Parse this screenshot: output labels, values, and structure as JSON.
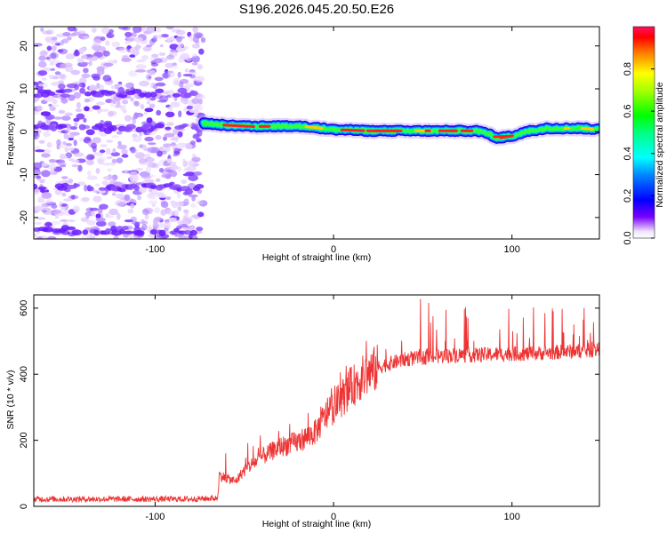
{
  "title": "S196.2026.045.20.50.E26",
  "chart_data": [
    {
      "type": "heatmap",
      "title": "S196.2026.045.20.50.E26",
      "xlabel": "Height of straight line (km)",
      "ylabel": "Frequency (Hz)",
      "xlim": [
        -168,
        149
      ],
      "ylim": [
        -25,
        24.5
      ],
      "xticks": [
        -100,
        0,
        100
      ],
      "xtick_labels": [
        "-100",
        "0",
        "100"
      ],
      "yticks": [
        -20,
        -10,
        0,
        10,
        20
      ],
      "ytick_labels": [
        "-20",
        "-10",
        "0",
        "10",
        "20"
      ],
      "noise_region_x": [
        -168,
        -73
      ],
      "noise_horizontal_bands_hz": [
        -23,
        -13,
        1,
        9
      ],
      "ridge": {
        "x": [
          -73,
          -60,
          -45,
          -30,
          -15,
          0,
          20,
          40,
          60,
          75,
          80,
          85,
          92,
          100,
          110,
          120,
          130,
          140,
          149
        ],
        "freq": [
          2,
          1.5,
          1.2,
          1.3,
          1.2,
          0.5,
          0.2,
          0.2,
          0.2,
          0.2,
          0.2,
          -0.2,
          -1.5,
          -1.0,
          0.2,
          0.8,
          0.8,
          0.8,
          0.5
        ]
      },
      "colorbar": {
        "label": "Normalized spectral amplitude",
        "range": [
          0,
          1
        ],
        "ticks": [
          0.0,
          0.2,
          0.4,
          0.6,
          0.8
        ],
        "tick_labels": [
          "0.0",
          "0.2",
          "0.4",
          "0.6",
          "0.8"
        ]
      }
    },
    {
      "type": "line",
      "xlabel": "Height of straight line (km)",
      "ylabel": "SNR (10 * v/v)",
      "xlim": [
        -168,
        149
      ],
      "ylim": [
        0,
        640
      ],
      "xticks": [
        -100,
        0,
        100
      ],
      "xtick_labels": [
        "-100",
        "0",
        "100"
      ],
      "yticks": [
        0,
        200,
        400,
        600
      ],
      "ytick_labels": [
        "0",
        "200",
        "400",
        "600"
      ],
      "color": "#ee3333",
      "series": [
        {
          "name": "SNR",
          "x": [
            -168,
            -140,
            -110,
            -80,
            -65,
            -64,
            -60,
            -55,
            -50,
            -40,
            -30,
            -20,
            -10,
            -5,
            0,
            5,
            10,
            15,
            20,
            25,
            30,
            40,
            50,
            60,
            70,
            80,
            90,
            100,
            110,
            120,
            130,
            140,
            149
          ],
          "y": [
            22,
            22,
            22,
            22,
            25,
            95,
            85,
            75,
            110,
            150,
            180,
            195,
            225,
            270,
            300,
            330,
            360,
            385,
            405,
            420,
            430,
            445,
            450,
            455,
            458,
            458,
            460,
            462,
            462,
            465,
            468,
            470,
            475
          ]
        }
      ]
    }
  ]
}
